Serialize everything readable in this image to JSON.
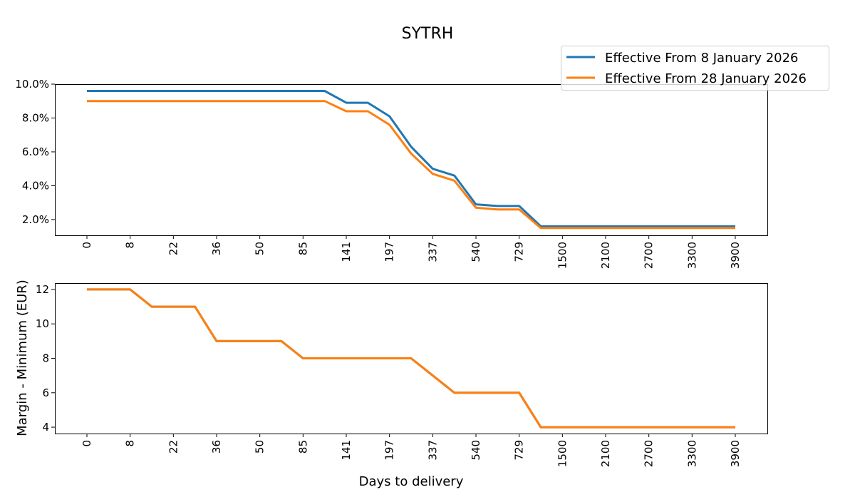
{
  "chart_data": [
    {
      "type": "line",
      "title": "SYTRH",
      "x_tick_labels": [
        "0",
        "8",
        "22",
        "36",
        "50",
        "85",
        "141",
        "197",
        "337",
        "540",
        "729",
        "1500",
        "2100",
        "2700",
        "3300",
        "3900"
      ],
      "categories": [
        "0",
        null,
        "8",
        null,
        "22",
        null,
        "36",
        null,
        "50",
        null,
        "85",
        null,
        "141",
        null,
        "197",
        null,
        "337",
        null,
        "540",
        null,
        "729",
        null,
        "1500",
        null,
        "2100",
        null,
        "2700",
        null,
        "3300",
        null,
        "3900"
      ],
      "ylabel": "",
      "ylim": [
        1.07,
        10.0
      ],
      "y_ticks": [
        2.0,
        4.0,
        6.0,
        8.0,
        10.0
      ],
      "y_tick_labels": [
        "2.0%",
        "4.0%",
        "6.0%",
        "8.0%",
        "10.0%"
      ],
      "legend_position": "top-right, outside above axes",
      "grid": false,
      "series": [
        {
          "name": "Effective From 8 January 2026",
          "color": "#1f77b4",
          "values": [
            9.6,
            9.6,
            9.6,
            9.6,
            9.6,
            9.6,
            9.6,
            9.6,
            9.6,
            9.6,
            9.6,
            9.6,
            8.9,
            8.9,
            8.1,
            6.3,
            5.0,
            4.6,
            2.9,
            2.8,
            2.8,
            1.6,
            1.6,
            1.6,
            1.6,
            1.6,
            1.6,
            1.6,
            1.6,
            1.6,
            1.6
          ]
        },
        {
          "name": "Effective From 28 January 2026",
          "color": "#ff7f0e",
          "values": [
            9.0,
            9.0,
            9.0,
            9.0,
            9.0,
            9.0,
            9.0,
            9.0,
            9.0,
            9.0,
            9.0,
            9.0,
            8.4,
            8.4,
            7.6,
            5.9,
            4.7,
            4.3,
            2.7,
            2.6,
            2.6,
            1.5,
            1.5,
            1.5,
            1.5,
            1.5,
            1.5,
            1.5,
            1.5,
            1.5,
            1.5
          ]
        }
      ]
    },
    {
      "type": "line",
      "x_tick_labels": [
        "0",
        "8",
        "22",
        "36",
        "50",
        "85",
        "141",
        "197",
        "337",
        "540",
        "729",
        "1500",
        "2100",
        "2700",
        "3300",
        "3900"
      ],
      "xlabel": "Days to delivery",
      "ylabel": "Margin -  Minimum (EUR)",
      "ylim": [
        3.63,
        12.37
      ],
      "y_ticks": [
        4,
        6,
        8,
        10,
        12
      ],
      "y_tick_labels": [
        "4",
        "6",
        "8",
        "10",
        "12"
      ],
      "grid": false,
      "series": [
        {
          "color": "#1f77b4",
          "values": [
            12,
            12,
            12,
            11,
            11,
            11,
            9,
            9,
            9,
            9,
            8,
            8,
            8,
            8,
            8,
            8,
            7,
            6,
            6,
            6,
            6,
            4,
            4,
            4,
            4,
            4,
            4,
            4,
            4,
            4,
            4
          ]
        },
        {
          "color": "#ff7f0e",
          "values": [
            12,
            12,
            12,
            11,
            11,
            11,
            9,
            9,
            9,
            9,
            8,
            8,
            8,
            8,
            8,
            8,
            7,
            6,
            6,
            6,
            6,
            4,
            4,
            4,
            4,
            4,
            4,
            4,
            4,
            4,
            4
          ]
        }
      ]
    }
  ]
}
